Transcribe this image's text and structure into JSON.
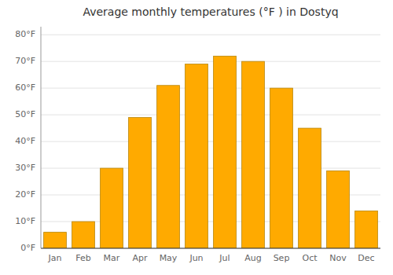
{
  "chart_data": {
    "type": "bar",
    "title": "Average monthly temperatures (°F ) in Dostyq",
    "categories": [
      "Jan",
      "Feb",
      "Mar",
      "Apr",
      "May",
      "Jun",
      "Jul",
      "Aug",
      "Sep",
      "Oct",
      "Nov",
      "Dec"
    ],
    "values": [
      6,
      10,
      30,
      49,
      61,
      69,
      72,
      70,
      60,
      45,
      29,
      14
    ],
    "color": "#FFAA00",
    "ylim": [
      0,
      83
    ],
    "yticks": [
      {
        "value": 0,
        "label": "0°F"
      },
      {
        "value": 10,
        "label": "10°F"
      },
      {
        "value": 20,
        "label": "20°F"
      },
      {
        "value": 30,
        "label": "30°F"
      },
      {
        "value": 40,
        "label": "40°F"
      },
      {
        "value": 50,
        "label": "50°F"
      },
      {
        "value": 60,
        "label": "60°F"
      },
      {
        "value": 70,
        "label": "70°F"
      },
      {
        "value": 80,
        "label": "80°F"
      }
    ],
    "grid": true
  }
}
